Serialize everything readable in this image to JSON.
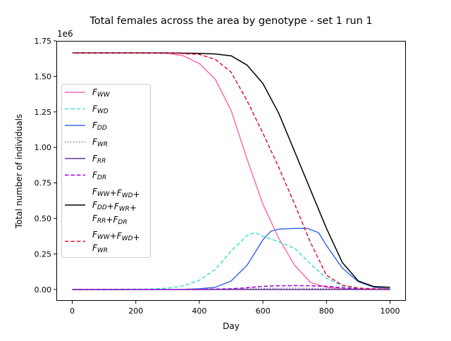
{
  "chart_data": {
    "type": "line",
    "title": "Total females across the area by genotype - set 1 run 1",
    "xlabel": "Day",
    "ylabel": "Total number of individuals",
    "y_multiplier_label": "1e6",
    "xlim": [
      -50,
      1050
    ],
    "ylim": [
      -0.08,
      1.75
    ],
    "x_ticks": [
      0,
      200,
      400,
      600,
      800,
      1000
    ],
    "x_tick_labels": [
      "0",
      "200",
      "400",
      "600",
      "800",
      "1000"
    ],
    "y_ticks": [
      0,
      0.25,
      0.5,
      0.75,
      1.0,
      1.25,
      1.5,
      1.75
    ],
    "y_tick_labels": [
      "0.00",
      "0.25",
      "0.50",
      "0.75",
      "1.00",
      "1.25",
      "1.50",
      "1.75"
    ],
    "grid": false,
    "legend_position": "center-left",
    "series": [
      {
        "name": "F_{WW}",
        "legend_lines": [
          "F_{WW}"
        ],
        "color": "#ff69b4",
        "style": "solid",
        "x": [
          0,
          100,
          200,
          300,
          350,
          400,
          450,
          500,
          550,
          600,
          650,
          700,
          750,
          800,
          850,
          1000
        ],
        "y": [
          1.665,
          1.665,
          1.665,
          1.662,
          1.645,
          1.59,
          1.48,
          1.26,
          0.92,
          0.6,
          0.36,
          0.17,
          0.05,
          0.015,
          0.005,
          0
        ]
      },
      {
        "name": "F_{WD}",
        "legend_lines": [
          "F_{WD}"
        ],
        "color": "#40e0d0",
        "style": "dashed",
        "x": [
          0,
          250,
          300,
          350,
          400,
          450,
          500,
          550,
          575,
          600,
          650,
          700,
          750,
          800,
          850,
          900,
          1000
        ],
        "y": [
          0,
          0.003,
          0.01,
          0.025,
          0.065,
          0.14,
          0.27,
          0.38,
          0.4,
          0.375,
          0.335,
          0.29,
          0.18,
          0.08,
          0.025,
          0.008,
          0
        ]
      },
      {
        "name": "F_{DD}",
        "legend_lines": [
          "F_{DD}"
        ],
        "color": "#4169e1",
        "style": "solid",
        "x": [
          0,
          350,
          400,
          450,
          500,
          550,
          600,
          625,
          650,
          700,
          740,
          775,
          800,
          850,
          900,
          950,
          1000
        ],
        "y": [
          0,
          0.001,
          0.005,
          0.015,
          0.06,
          0.17,
          0.35,
          0.41,
          0.425,
          0.43,
          0.43,
          0.4,
          0.31,
          0.15,
          0.055,
          0.015,
          0.005
        ]
      },
      {
        "name": "F_{WR}",
        "legend_lines": [
          "F_{WR}"
        ],
        "color": "#708090",
        "style": "dotted",
        "x": [
          0,
          400,
          500,
          600,
          700,
          800,
          900,
          1000
        ],
        "y": [
          0,
          0.001,
          0.004,
          0.008,
          0.01,
          0.007,
          0.002,
          0
        ]
      },
      {
        "name": "F_{RR}",
        "legend_lines": [
          "F_{RR}"
        ],
        "color": "#663399",
        "style": "solid",
        "x": [
          0,
          1000
        ],
        "y": [
          0,
          0
        ]
      },
      {
        "name": "F_{DR}",
        "legend_lines": [
          "F_{DR}"
        ],
        "color": "#9400d3",
        "style": "dashed",
        "x": [
          0,
          400,
          500,
          550,
          600,
          650,
          700,
          750,
          800,
          850,
          900,
          1000
        ],
        "y": [
          0,
          0.001,
          0.005,
          0.012,
          0.022,
          0.026,
          0.027,
          0.026,
          0.022,
          0.012,
          0.004,
          0
        ]
      },
      {
        "name": "F_{WW}+F_{WD}+F_{DD}+F_{WR}+F_{RR}+F_{DR}",
        "legend_lines": [
          "F_{WW}+F_{WD}+",
          "F_{DD}+F_{WR}+",
          "F_{RR}+F_{DR}"
        ],
        "color": "#000000",
        "style": "solid",
        "x": [
          0,
          100,
          200,
          300,
          400,
          450,
          500,
          550,
          600,
          650,
          700,
          750,
          800,
          850,
          900,
          950,
          1000
        ],
        "y": [
          1.665,
          1.665,
          1.665,
          1.665,
          1.662,
          1.658,
          1.645,
          1.58,
          1.45,
          1.24,
          0.97,
          0.7,
          0.43,
          0.19,
          0.06,
          0.02,
          0.015
        ]
      },
      {
        "name": "F_{WW}+F_{WD}+F_{WR}",
        "legend_lines": [
          "F_{WW}+F_{WD}+",
          "F_{WR}"
        ],
        "color": "#dc143c",
        "style": "dashed",
        "x": [
          0,
          100,
          200,
          300,
          400,
          450,
          500,
          550,
          600,
          650,
          700,
          750,
          800,
          850,
          900,
          1000
        ],
        "y": [
          1.665,
          1.665,
          1.665,
          1.665,
          1.655,
          1.62,
          1.53,
          1.33,
          1.1,
          0.86,
          0.6,
          0.33,
          0.1,
          0.03,
          0.01,
          0
        ]
      }
    ]
  }
}
